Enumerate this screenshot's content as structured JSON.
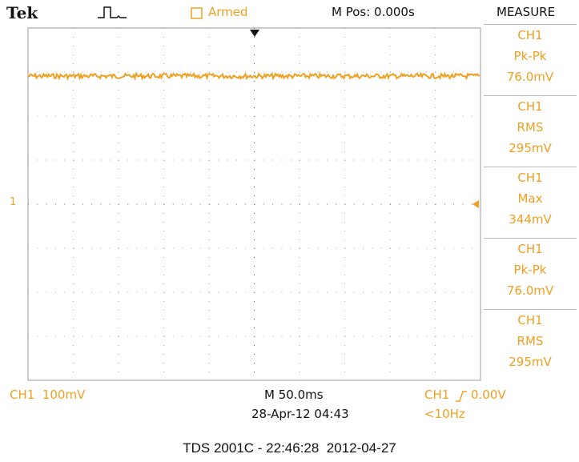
{
  "header": {
    "brand": "Tek",
    "status": "Armed",
    "position": "M Pos: 0.000s",
    "menu": "MEASURE"
  },
  "channel_marker": "1",
  "measurements": [
    {
      "channel": "CH1",
      "name": "Pk-Pk",
      "value": "76.0mV"
    },
    {
      "channel": "CH1",
      "name": "RMS",
      "value": "295mV"
    },
    {
      "channel": "CH1",
      "name": "Max",
      "value": "344mV"
    },
    {
      "channel": "CH1",
      "name": "Pk-Pk",
      "value": "76.0mV"
    },
    {
      "channel": "CH1",
      "name": "RMS",
      "value": "295mV"
    }
  ],
  "footer": {
    "channel_scale": "CH1  100mV",
    "timebase": "M 50.0ms",
    "datetime": "28-Apr-12 04:43",
    "trigger_source": "CH1",
    "trigger_level": "0.00V",
    "frequency": "<10Hz"
  },
  "caption": "TDS 2001C - 22:46:28  2012-04-27"
}
